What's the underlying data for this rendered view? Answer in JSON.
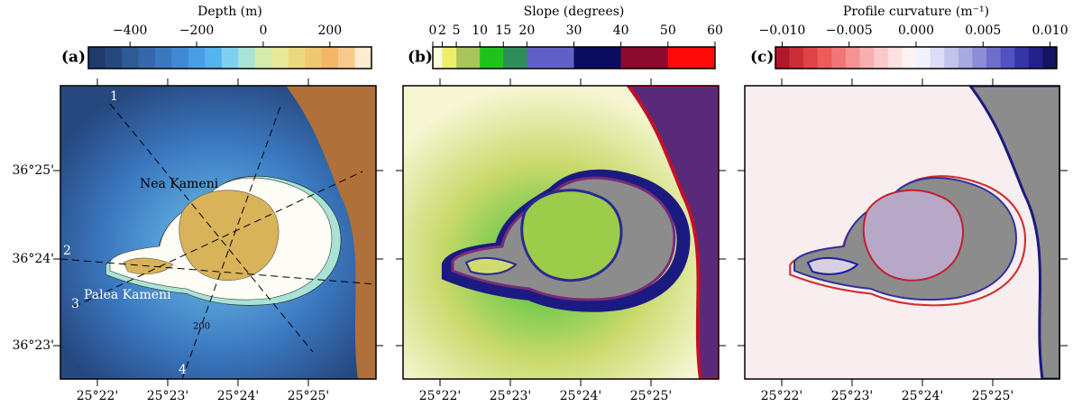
{
  "panels": [
    {
      "label": "(a)",
      "colorbar": {
        "title": "Depth (m)",
        "lim": [
          -525,
          325
        ],
        "ticks": [
          {
            "value": -400,
            "label": "−400"
          },
          {
            "value": -200,
            "label": "−200"
          },
          0,
          200
        ],
        "colors": [
          "#1f3a6b",
          "#27487f",
          "#2e5a96",
          "#3568ab",
          "#3b78c0",
          "#4189d4",
          "#4a9ee6",
          "#55b3ee",
          "#7fd0ef",
          "#a9e3d6",
          "#d3ecae",
          "#e6e89a",
          "#ecd97f",
          "#f0c870",
          "#f4b566",
          "#f8c98c",
          "#fdebd0"
        ]
      },
      "annotations": [
        "1",
        "2",
        "3",
        "4",
        "Nea Kameni",
        "Palea Kameni",
        "200"
      ]
    },
    {
      "label": "(b)",
      "colorbar": {
        "title": "Slope (degrees)",
        "lim": [
          0,
          60
        ],
        "ticks": [
          0,
          2,
          5,
          10,
          15,
          20,
          30,
          40,
          50,
          60
        ],
        "colors": [
          "#fbfbd8",
          "#eeee6a",
          "#a8c45a",
          "#22c21e",
          "#2f8f5a",
          "#6060c8",
          "#0c0c60",
          "#8c0a2e",
          "#ff0a0a"
        ]
      }
    },
    {
      "label": "(c)",
      "colorbar": {
        "title": "Profile curvature (m⁻¹)",
        "lim": [
          -0.0105,
          0.0105
        ],
        "ticks": [
          {
            "value": -0.01,
            "label": "−0.010"
          },
          {
            "value": -0.005,
            "label": "−0.005"
          },
          {
            "value": 0,
            "label": "0.000"
          },
          0.005,
          {
            "value": 0.01,
            "label": "0.010"
          }
        ],
        "colors": [
          "#b2182b",
          "#cc2f35",
          "#e04446",
          "#ee5b5b",
          "#f27676",
          "#f59393",
          "#f8afaf",
          "#fbc9c9",
          "#fde0e0",
          "#fff2f2",
          "#f2f2ff",
          "#dcdcf5",
          "#c3c3ec",
          "#a8a8e2",
          "#8c8cd8",
          "#6e6ecd",
          "#5252c0",
          "#3636a8",
          "#22228a",
          "#141460"
        ]
      }
    }
  ],
  "latitude_labels": [
    "36°25'",
    "36°24'",
    "36°23'"
  ],
  "longitude_labels": [
    "25°22'",
    "25°23'",
    "25°24'",
    "25°25'"
  ]
}
